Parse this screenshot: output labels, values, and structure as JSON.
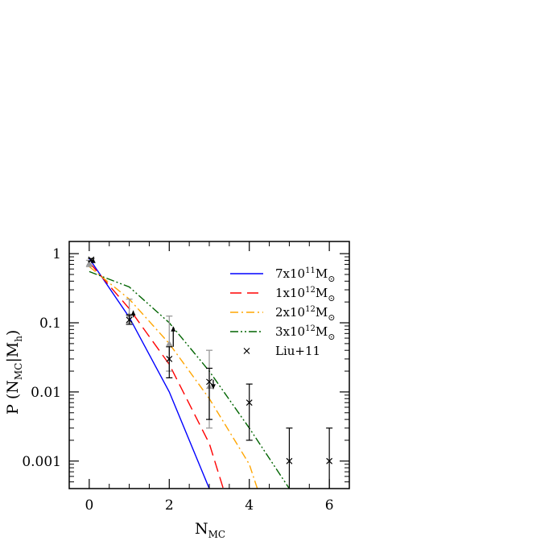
{
  "chart_data": {
    "type": "line",
    "xlabel": "N",
    "xlabel_sub": "MC",
    "ylabel": "P (N",
    "ylabel_sub": "MC",
    "ylabel_mid": "|M",
    "ylabel_sub2": "h",
    "ylabel_end": ")",
    "xlim": [
      -0.5,
      6.5
    ],
    "ylim": [
      0.0004,
      1.5
    ],
    "yscale": "log",
    "x_ticks": [
      0,
      2,
      4,
      6
    ],
    "x_tick_labels": [
      "0",
      "2",
      "4",
      "6"
    ],
    "y_ticks": [
      0.001,
      0.01,
      0.1,
      1
    ],
    "y_tick_labels": [
      "0.001",
      "0.01",
      "0.1",
      "1"
    ],
    "legend_position": "top-right",
    "series": [
      {
        "name": "7x10",
        "name_sup": "11",
        "name_tail": "M",
        "name_sub": "⊙",
        "color": "#0000ff",
        "style": "solid",
        "x": [
          0,
          1,
          2,
          3
        ],
        "y": [
          0.85,
          0.12,
          0.01,
          0.0004
        ]
      },
      {
        "name": "1x10",
        "name_sup": "12",
        "name_tail": "M",
        "name_sub": "⊙",
        "color": "#ff0000",
        "style": "dash",
        "x": [
          0,
          1,
          2,
          3,
          3.35
        ],
        "y": [
          0.75,
          0.16,
          0.025,
          0.0018,
          0.0004
        ]
      },
      {
        "name": "2x10",
        "name_sup": "12",
        "name_tail": "M",
        "name_sub": "⊙",
        "color": "#ffa500",
        "style": "dashdot",
        "x": [
          0,
          1,
          2,
          3,
          4,
          4.2
        ],
        "y": [
          0.65,
          0.22,
          0.05,
          0.008,
          0.0009,
          0.0004
        ]
      },
      {
        "name": "3x10",
        "name_sup": "12",
        "name_tail": "M",
        "name_sub": "⊙",
        "color": "#006400",
        "style": "dashdotdot",
        "x": [
          0,
          1,
          2,
          3,
          4,
          5
        ],
        "y": [
          0.55,
          0.33,
          0.1,
          0.02,
          0.003,
          0.0004
        ]
      }
    ],
    "observations": {
      "name": "Liu+11",
      "color": "#000000",
      "marker": "x",
      "points": [
        {
          "x": 0.05,
          "y": 0.82,
          "lo": 0.78,
          "hi": 0.85
        },
        {
          "x": 1,
          "y": 0.11,
          "lo": 0.095,
          "hi": 0.13
        },
        {
          "x": 2,
          "y": 0.03,
          "lo": 0.016,
          "hi": 0.045
        },
        {
          "x": 3,
          "y": 0.014,
          "lo": 0.004,
          "hi": 0.022
        },
        {
          "x": 4,
          "y": 0.007,
          "lo": 0.002,
          "hi": 0.013
        },
        {
          "x": 5,
          "y": 0.001,
          "lo": 0.0004,
          "hi": 0.003
        },
        {
          "x": 6,
          "y": 0.001,
          "lo": 0.0004,
          "hi": 0.003
        }
      ]
    },
    "gray_points": {
      "color": "#999999",
      "points": [
        {
          "x": 0,
          "y": 0.72,
          "lo": 0.65,
          "hi": 0.8
        },
        {
          "x": 1,
          "y": 0.13,
          "lo": 0.1,
          "hi": 0.22
        },
        {
          "x": 2,
          "y": 0.05,
          "lo": 0.02,
          "hi": 0.125
        },
        {
          "x": 3,
          "y": 0.012,
          "lo": 0.003,
          "hi": 0.04
        }
      ]
    },
    "arrows": [
      {
        "x": 0.1,
        "from": 0.76,
        "to": 0.86
      },
      {
        "x": 1.1,
        "from": 0.12,
        "to": 0.15
      },
      {
        "x": 2.1,
        "from": 0.045,
        "to": 0.088
      },
      {
        "x": 3.1,
        "from": 0.015,
        "to": 0.011
      }
    ]
  }
}
